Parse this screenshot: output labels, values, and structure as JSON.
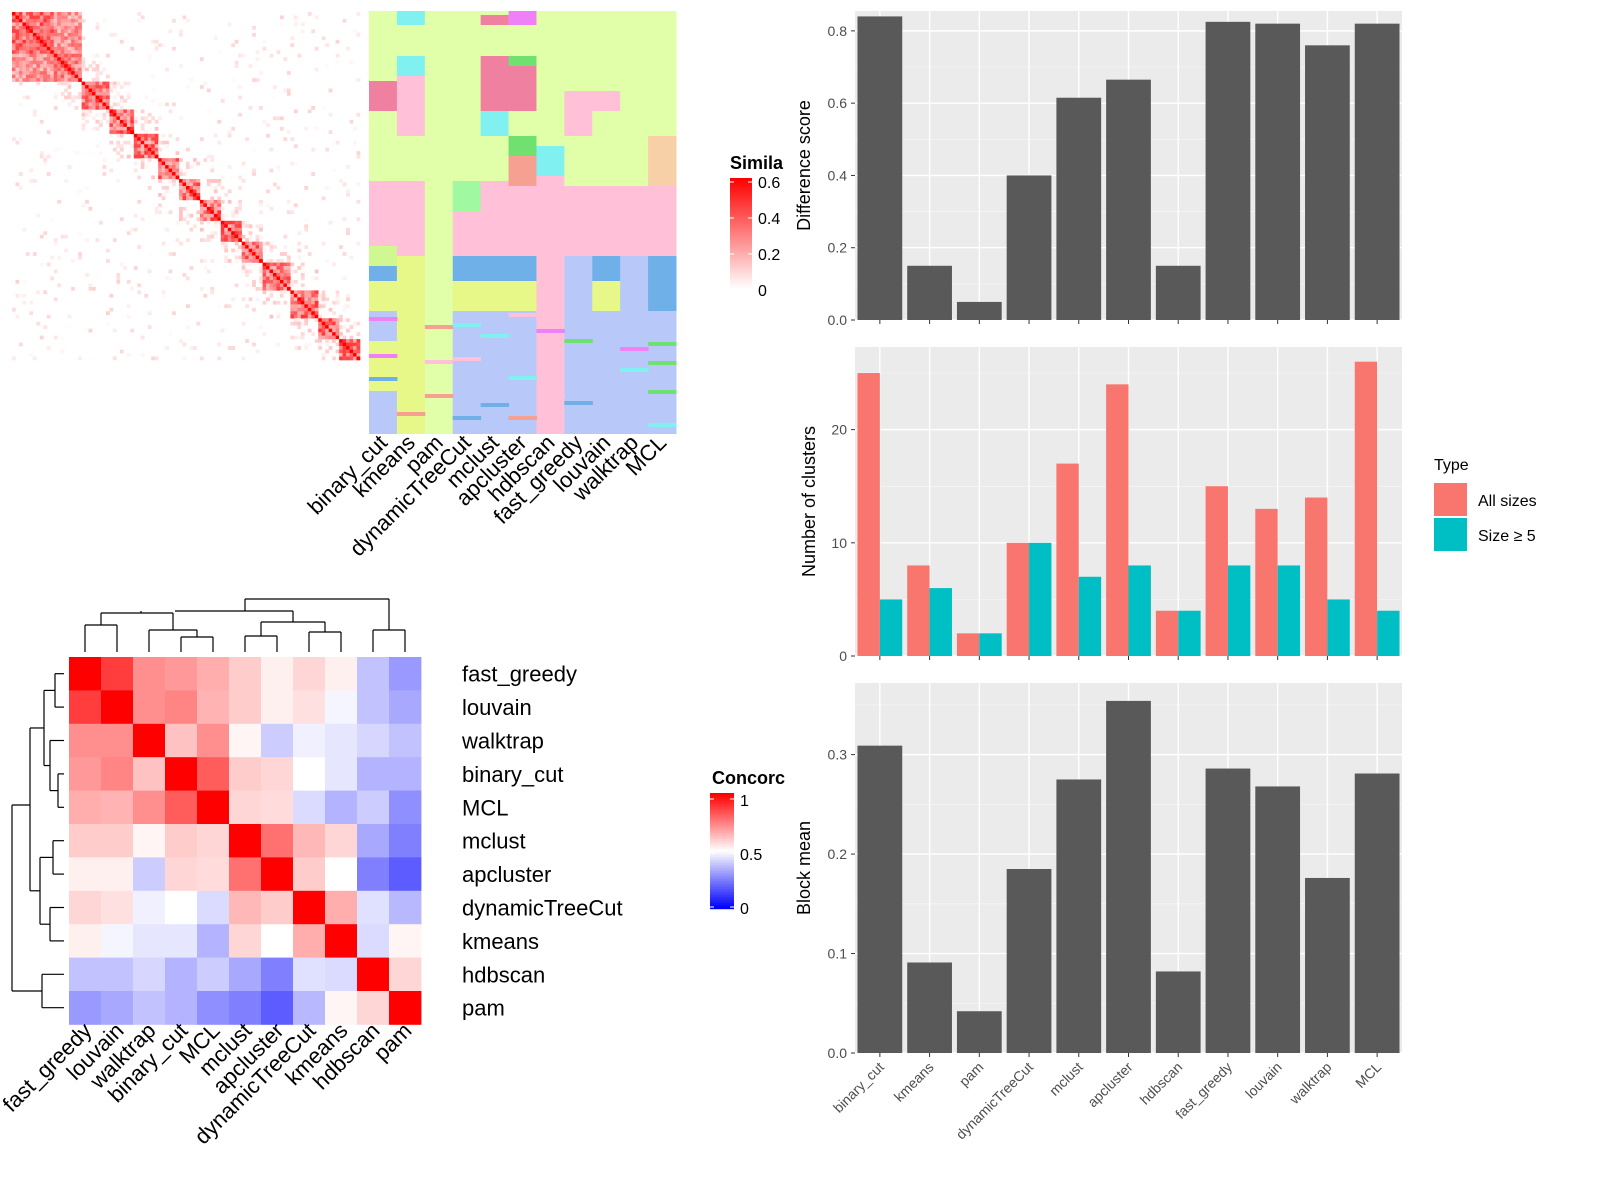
{
  "methods": [
    "binary_cut",
    "kmeans",
    "pam",
    "dynamicTreeCut",
    "mclust",
    "apcluster",
    "hdbscan",
    "fast_greedy",
    "louvain",
    "walktrap",
    "MCL"
  ],
  "chart_data": [
    {
      "type": "heatmap",
      "name": "similarity-heatmap",
      "legend_title": "Simila",
      "legend_ticks": [
        "0.6",
        "0.4",
        "0.2",
        "0"
      ],
      "colorscale": [
        "#ffffff",
        "#ff0000"
      ],
      "n_terms": 100
    },
    {
      "type": "heatmap",
      "name": "cluster-assignment-heatmap",
      "columns": [
        "binary_cut",
        "kmeans",
        "pam",
        "dynamicTreeCut",
        "mclust",
        "apcluster",
        "hdbscan",
        "fast_greedy",
        "louvain",
        "walktrap",
        "MCL"
      ]
    },
    {
      "type": "heatmap",
      "name": "concordance-heatmap",
      "legend_title": "Concorc",
      "legend_ticks": [
        "1",
        "0.5",
        "0"
      ],
      "colorscale": [
        "#0000ff",
        "#ffffff",
        "#ff0000"
      ],
      "order": [
        "fast_greedy",
        "louvain",
        "walktrap",
        "binary_cut",
        "MCL",
        "mclust",
        "apcluster",
        "dynamicTreeCut",
        "kmeans",
        "hdbscan",
        "pam"
      ],
      "values": [
        [
          1.0,
          0.88,
          0.72,
          0.7,
          0.66,
          0.6,
          0.53,
          0.58,
          0.53,
          0.38,
          0.3
        ],
        [
          0.88,
          1.0,
          0.72,
          0.74,
          0.65,
          0.6,
          0.53,
          0.56,
          0.48,
          0.38,
          0.33
        ],
        [
          0.72,
          0.72,
          1.0,
          0.62,
          0.72,
          0.52,
          0.4,
          0.47,
          0.45,
          0.42,
          0.38
        ],
        [
          0.7,
          0.74,
          0.62,
          1.0,
          0.82,
          0.6,
          0.58,
          0.5,
          0.45,
          0.35,
          0.35
        ],
        [
          0.66,
          0.65,
          0.72,
          0.82,
          1.0,
          0.58,
          0.57,
          0.43,
          0.35,
          0.4,
          0.28
        ],
        [
          0.6,
          0.6,
          0.52,
          0.6,
          0.58,
          1.0,
          0.78,
          0.64,
          0.58,
          0.33,
          0.25
        ],
        [
          0.53,
          0.53,
          0.4,
          0.58,
          0.57,
          0.78,
          1.0,
          0.6,
          0.5,
          0.25,
          0.18
        ],
        [
          0.58,
          0.56,
          0.47,
          0.5,
          0.43,
          0.64,
          0.6,
          1.0,
          0.66,
          0.44,
          0.36
        ],
        [
          0.53,
          0.48,
          0.45,
          0.45,
          0.35,
          0.58,
          0.5,
          0.66,
          1.0,
          0.43,
          0.52
        ],
        [
          0.38,
          0.38,
          0.42,
          0.35,
          0.4,
          0.33,
          0.25,
          0.44,
          0.43,
          1.0,
          0.58
        ],
        [
          0.3,
          0.33,
          0.38,
          0.35,
          0.28,
          0.25,
          0.18,
          0.36,
          0.52,
          0.58,
          1.0
        ]
      ]
    },
    {
      "type": "bar",
      "name": "difference-score",
      "categories": [
        "binary_cut",
        "kmeans",
        "pam",
        "dynamicTreeCut",
        "mclust",
        "apcluster",
        "hdbscan",
        "fast_greedy",
        "louvain",
        "walktrap",
        "MCL"
      ],
      "values": [
        0.84,
        0.15,
        0.05,
        0.4,
        0.615,
        0.665,
        0.15,
        0.825,
        0.82,
        0.76,
        0.82
      ],
      "ylabel": "Difference score",
      "ylim": [
        0,
        0.855
      ],
      "yticks": [
        0.0,
        0.2,
        0.4,
        0.6,
        0.8
      ],
      "ytick_labels": [
        "0.0",
        "0.2",
        "0.4",
        "0.6",
        "0.8"
      ],
      "color": "#595959"
    },
    {
      "type": "bar",
      "name": "number-of-clusters",
      "categories": [
        "binary_cut",
        "kmeans",
        "pam",
        "dynamicTreeCut",
        "mclust",
        "apcluster",
        "hdbscan",
        "fast_greedy",
        "louvain",
        "walktrap",
        "MCL"
      ],
      "series": [
        {
          "name": "All sizes",
          "values": [
            25,
            8,
            2,
            10,
            17,
            24,
            4,
            15,
            13,
            14,
            26
          ],
          "color": "#f8766d"
        },
        {
          "name": "Size ≥ 5",
          "values": [
            5,
            6,
            2,
            10,
            7,
            8,
            4,
            8,
            8,
            5,
            4
          ],
          "color": "#00bfc4"
        }
      ],
      "ylabel": "Number of clusters",
      "ylim": [
        0,
        27.3
      ],
      "yticks": [
        0,
        10,
        20
      ],
      "ytick_labels": [
        "0",
        "10",
        "20"
      ],
      "legend_title": "Type",
      "legend_position": "right"
    },
    {
      "type": "bar",
      "name": "block-mean",
      "categories": [
        "binary_cut",
        "kmeans",
        "pam",
        "dynamicTreeCut",
        "mclust",
        "apcluster",
        "hdbscan",
        "fast_greedy",
        "louvain",
        "walktrap",
        "MCL"
      ],
      "values": [
        0.309,
        0.091,
        0.042,
        0.185,
        0.275,
        0.354,
        0.082,
        0.286,
        0.268,
        0.176,
        0.281
      ],
      "ylabel": "Block mean",
      "ylim": [
        0,
        0.372
      ],
      "yticks": [
        0.0,
        0.1,
        0.2,
        0.3
      ],
      "ytick_labels": [
        "0.0",
        "0.1",
        "0.2",
        "0.3"
      ],
      "color": "#595959"
    }
  ]
}
